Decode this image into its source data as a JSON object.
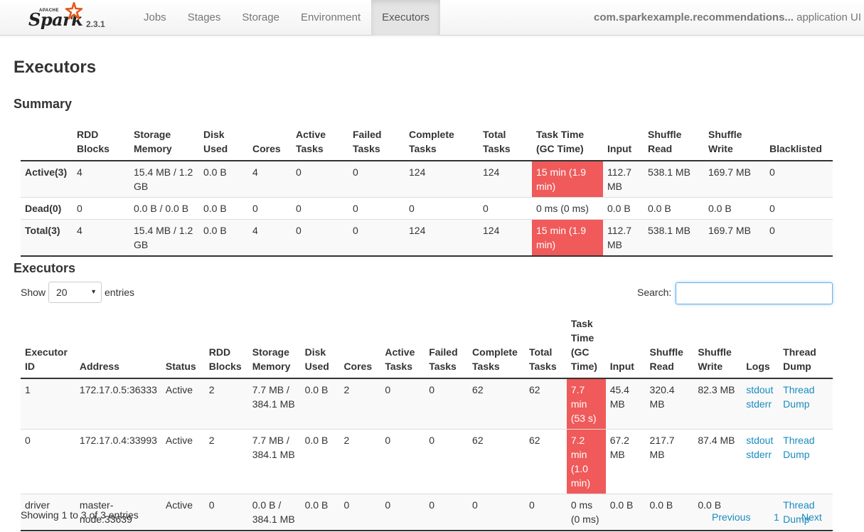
{
  "navbar": {
    "brand_apache": "APACHE",
    "brand_name": "Spark",
    "version": "2.3.1",
    "tabs": [
      "Jobs",
      "Stages",
      "Storage",
      "Environment",
      "Executors"
    ],
    "active_tab": "Executors",
    "app_name": "com.sparkexample.recommendations...",
    "app_suffix": "application UI"
  },
  "page_title": "Executors",
  "summary": {
    "title": "Summary",
    "headers": [
      "",
      "RDD Blocks",
      "Storage Memory",
      "Disk Used",
      "Cores",
      "Active Tasks",
      "Failed Tasks",
      "Complete Tasks",
      "Total Tasks",
      "Task Time (GC Time)",
      "Input",
      "Shuffle Read",
      "Shuffle Write",
      "Blacklisted"
    ],
    "rows": [
      [
        "Active(3)",
        "4",
        "15.4 MB / 1.2 GB",
        "0.0 B",
        "4",
        "0",
        "0",
        "124",
        "124",
        "15 min (1.9 min)",
        "112.7 MB",
        "538.1 MB",
        "169.7 MB",
        "0"
      ],
      [
        "Dead(0)",
        "0",
        "0.0 B / 0.0 B",
        "0.0 B",
        "0",
        "0",
        "0",
        "0",
        "0",
        "0 ms (0 ms)",
        "0.0 B",
        "0.0 B",
        "0.0 B",
        "0"
      ],
      [
        "Total(3)",
        "4",
        "15.4 MB / 1.2 GB",
        "0.0 B",
        "4",
        "0",
        "0",
        "124",
        "124",
        "15 min (1.9 min)",
        "112.7 MB",
        "538.1 MB",
        "169.7 MB",
        "0"
      ]
    ]
  },
  "executors": {
    "title": "Executors",
    "show_label": "Show",
    "page_size": "20",
    "entries_label": "entries",
    "search_label": "Search:",
    "search_value": "",
    "headers": [
      "Executor ID",
      "Address",
      "Status",
      "RDD Blocks",
      "Storage Memory",
      "Disk Used",
      "Cores",
      "Active Tasks",
      "Failed Tasks",
      "Complete Tasks",
      "Total Tasks",
      "Task Time (GC Time)",
      "Input",
      "Shuffle Read",
      "Shuffle Write",
      "Logs",
      "Thread Dump"
    ],
    "rows": [
      {
        "id": "1",
        "address": "172.17.0.5:36333",
        "status": "Active",
        "rdd": "2",
        "storage": "7.7 MB / 384.1 MB",
        "disk": "0.0 B",
        "cores": "2",
        "active": "0",
        "failed": "0",
        "complete": "62",
        "total": "62",
        "task_time": "7.7 min (53 s)",
        "input": "45.4 MB",
        "shuffle_read": "320.4 MB",
        "shuffle_write": "82.3 MB",
        "log_stdout": "stdout",
        "log_stderr": "stderr",
        "thread_dump": "Thread Dump"
      },
      {
        "id": "0",
        "address": "172.17.0.4:33993",
        "status": "Active",
        "rdd": "2",
        "storage": "7.7 MB / 384.1 MB",
        "disk": "0.0 B",
        "cores": "2",
        "active": "0",
        "failed": "0",
        "complete": "62",
        "total": "62",
        "task_time": "7.2 min (1.0 min)",
        "input": "67.2 MB",
        "shuffle_read": "217.7 MB",
        "shuffle_write": "87.4 MB",
        "log_stdout": "stdout",
        "log_stderr": "stderr",
        "thread_dump": "Thread Dump"
      },
      {
        "id": "driver",
        "address": "master-node:33639",
        "status": "Active",
        "rdd": "0",
        "storage": "0.0 B / 384.1 MB",
        "disk": "0.0 B",
        "cores": "0",
        "active": "0",
        "failed": "0",
        "complete": "0",
        "total": "0",
        "task_time": "0 ms (0 ms)",
        "input": "0.0 B",
        "shuffle_read": "0.0 B",
        "shuffle_write": "0.0 B",
        "log_stdout": "",
        "log_stderr": "",
        "thread_dump": "Thread Dump"
      }
    ],
    "info": "Showing 1 to 3 of 3 entries",
    "pager_previous": "Previous",
    "pager_page": "1",
    "pager_next": "Next"
  },
  "colors": {
    "gc_highlight": "#f05a5a",
    "link": "#1a8bbf",
    "star_orange": "#e25a1c"
  }
}
